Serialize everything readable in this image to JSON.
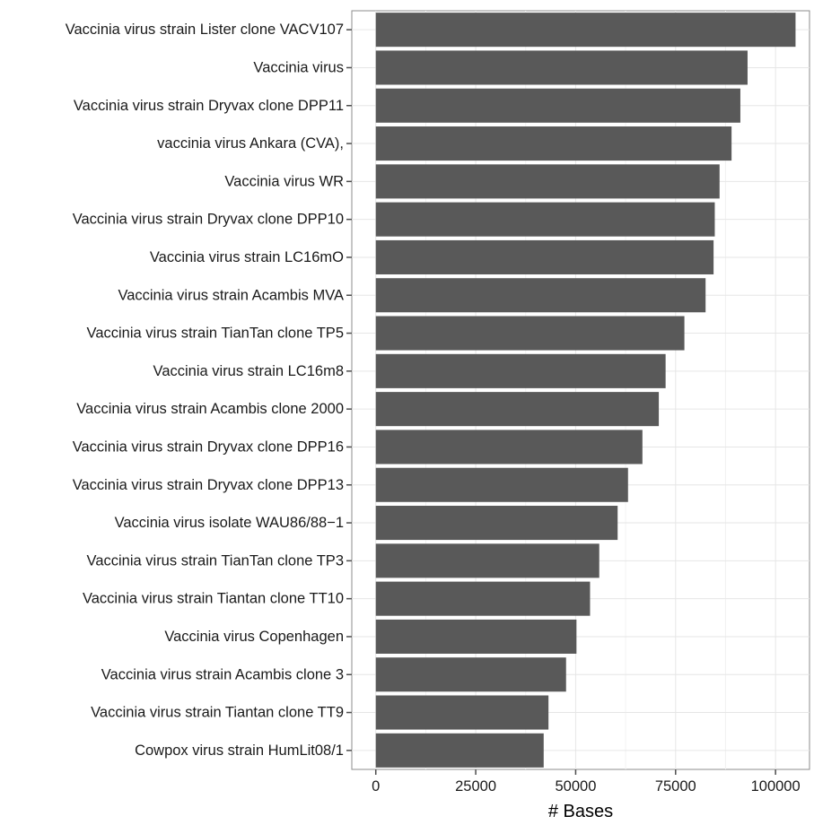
{
  "chart_data": {
    "type": "bar",
    "orientation": "horizontal",
    "title": "",
    "xlabel": "# Bases",
    "ylabel": "",
    "xlim": [
      -6000,
      108500
    ],
    "x_ticks": [
      0,
      25000,
      50000,
      75000,
      100000
    ],
    "x_tick_labels": [
      "0",
      "25000",
      "50000",
      "75000",
      "100000"
    ],
    "grid": true,
    "bar_color": "#595959",
    "categories": [
      "Vaccinia virus strain Lister clone VACV107",
      "Vaccinia virus",
      "Vaccinia virus strain Dryvax clone DPP11",
      "vaccinia virus Ankara (CVA),",
      "Vaccinia virus WR",
      "Vaccinia virus strain Dryvax clone DPP10",
      "Vaccinia virus strain LC16mO",
      "Vaccinia virus strain Acambis MVA",
      "Vaccinia virus strain TianTan clone TP5",
      "Vaccinia virus strain LC16m8",
      "Vaccinia virus strain Acambis clone 2000",
      "Vaccinia virus strain Dryvax clone DPP16",
      "Vaccinia virus strain Dryvax clone DPP13",
      "Vaccinia virus isolate WAU86/88−1",
      "Vaccinia virus strain TianTan clone TP3",
      "Vaccinia virus strain Tiantan clone TT10",
      "Vaccinia virus Copenhagen",
      "Vaccinia virus strain Acambis clone 3",
      "Vaccinia virus strain Tiantan clone TT9",
      "Cowpox virus strain HumLit08/1"
    ],
    "values": [
      105000,
      93000,
      91200,
      89000,
      86000,
      84800,
      84500,
      82500,
      77200,
      72500,
      70800,
      66700,
      63100,
      60500,
      55900,
      53600,
      50200,
      47600,
      43200,
      42000
    ]
  }
}
